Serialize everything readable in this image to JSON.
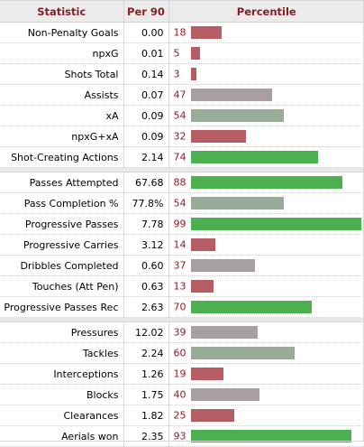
{
  "header": {
    "statistic": "Statistic",
    "per90": "Per 90",
    "percentile": "Percentile"
  },
  "colors": {
    "low": "#b55d62",
    "mid": "#a8a0a0",
    "midgreen": "#99ab99",
    "high": "#4caf50",
    "header_text": "#8c1c23"
  },
  "groups": [
    [
      {
        "label": "Non-Penalty Goals",
        "per90": "0.00",
        "pct": 18
      },
      {
        "label": "npxG",
        "per90": "0.01",
        "pct": 5
      },
      {
        "label": "Shots Total",
        "per90": "0.14",
        "pct": 3
      },
      {
        "label": "Assists",
        "per90": "0.07",
        "pct": 47
      },
      {
        "label": "xA",
        "per90": "0.09",
        "pct": 54
      },
      {
        "label": "npxG+xA",
        "per90": "0.09",
        "pct": 32
      },
      {
        "label": "Shot-Creating Actions",
        "per90": "2.14",
        "pct": 74
      }
    ],
    [
      {
        "label": "Passes Attempted",
        "per90": "67.68",
        "pct": 88
      },
      {
        "label": "Pass Completion %",
        "per90": "77.8%",
        "pct": 54
      },
      {
        "label": "Progressive Passes",
        "per90": "7.78",
        "pct": 99
      },
      {
        "label": "Progressive Carries",
        "per90": "3.12",
        "pct": 14
      },
      {
        "label": "Dribbles Completed",
        "per90": "0.60",
        "pct": 37
      },
      {
        "label": "Touches (Att Pen)",
        "per90": "0.63",
        "pct": 13
      },
      {
        "label": "Progressive Passes Rec",
        "per90": "2.63",
        "pct": 70
      }
    ],
    [
      {
        "label": "Pressures",
        "per90": "12.02",
        "pct": 39
      },
      {
        "label": "Tackles",
        "per90": "2.24",
        "pct": 60
      },
      {
        "label": "Interceptions",
        "per90": "1.26",
        "pct": 19
      },
      {
        "label": "Blocks",
        "per90": "1.75",
        "pct": 40
      },
      {
        "label": "Clearances",
        "per90": "1.82",
        "pct": 25
      },
      {
        "label": "Aerials won",
        "per90": "2.35",
        "pct": 93
      }
    ]
  ]
}
